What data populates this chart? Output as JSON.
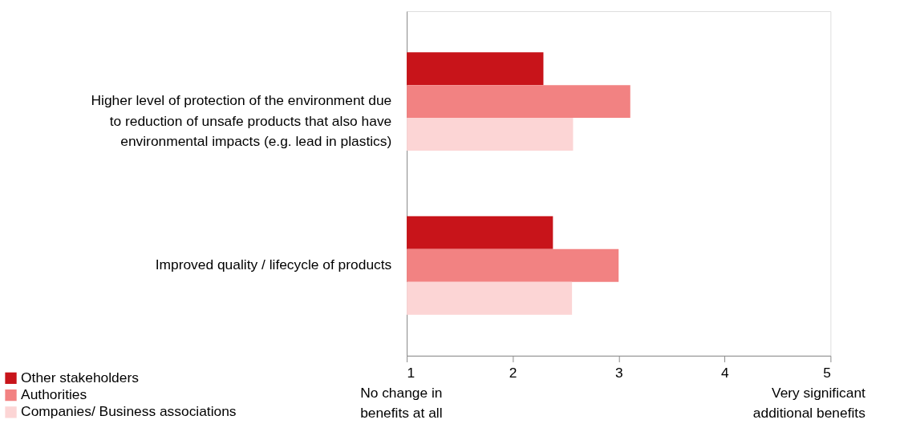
{
  "chart_data": {
    "type": "bar",
    "orientation": "horizontal",
    "categories": [
      "Higher level of protection of the environment due to reduction of unsafe products that also have environmental impacts (e.g. lead in plastics)",
      "Improved quality / lifecycle of products"
    ],
    "series": [
      {
        "name": "Other stakeholders",
        "color": "#c8141a",
        "values": [
          2.29,
          2.38
        ]
      },
      {
        "name": "Authorities",
        "color": "#f28282",
        "values": [
          3.11,
          3.0
        ]
      },
      {
        "name": "Companies/ Business associations",
        "color": "#fcd5d5",
        "values": [
          2.57,
          2.56
        ]
      }
    ],
    "xlim": [
      1,
      5
    ],
    "xticks": [
      1,
      2,
      3,
      4,
      5
    ],
    "grid": false,
    "legend": "bottom left",
    "annotations": [
      "No change in benefits at all",
      "Very significant additional benefits"
    ]
  }
}
